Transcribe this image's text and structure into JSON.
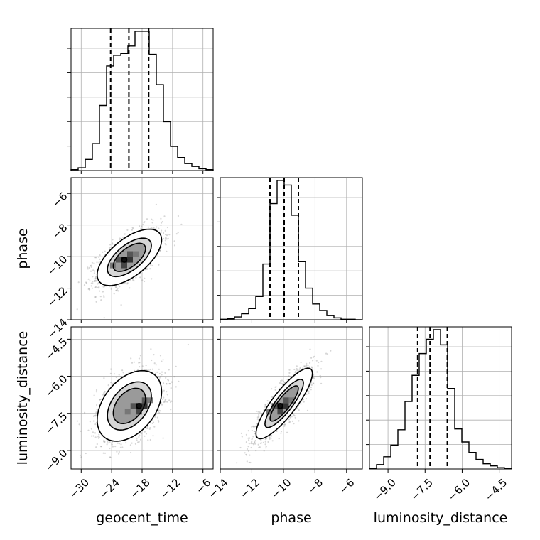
{
  "chart_data": {
    "type": "corner",
    "parameters": [
      "geocent_time",
      "phase",
      "luminosity_distance"
    ],
    "ranges": [
      [
        -32,
        -4
      ],
      [
        -14,
        -5
      ],
      [
        -9.75,
        -4.0
      ]
    ],
    "ticks": [
      [
        -30,
        -24,
        -18,
        -12,
        -6
      ],
      [
        -14,
        -12,
        -10,
        -8,
        -6
      ],
      [
        -9.0,
        -7.5,
        -6.0,
        -4.5
      ]
    ],
    "tick_labels": [
      [
        "−30",
        "−24",
        "−18",
        "−12",
        "−6"
      ],
      [
        "−14",
        "−12",
        "−10",
        "−8",
        "−6"
      ],
      [
        "−9.0",
        "−7.5",
        "−6.0",
        "−4.5"
      ]
    ],
    "y_tick_labels_phase": [
      "−6",
      "−8",
      "−10",
      "−12",
      "−14"
    ],
    "y_tick_labels_lum": [
      "−4.5",
      "−6.0",
      "−7.5",
      "−9.0"
    ],
    "grid": true,
    "histograms": [
      {
        "parameter": "geocent_time",
        "bin_edges": [
          -32,
          -30.6,
          -29.2,
          -27.8,
          -26.4,
          -25,
          -23.6,
          -22.2,
          -20.8,
          -19.4,
          -18,
          -16.6,
          -15.2,
          -13.8,
          -12.4,
          -11,
          -9.6,
          -8.2,
          -6.8,
          -5.4,
          -4
        ],
        "counts": [
          2,
          6,
          24,
          58,
          140,
          225,
          248,
          252,
          268,
          300,
          300,
          250,
          185,
          105,
          52,
          28,
          15,
          9,
          4,
          2
        ],
        "quantiles": [
          -24.2,
          -20.6,
          -16.7
        ]
      },
      {
        "parameter": "phase",
        "bin_edges": [
          -14,
          -13.55,
          -13.1,
          -12.65,
          -12.2,
          -11.75,
          -11.3,
          -10.85,
          -10.4,
          -9.95,
          -9.5,
          -9.05,
          -8.6,
          -8.15,
          -7.7,
          -7.25,
          -6.8,
          -6.35,
          -5.9,
          -5.45,
          -5
        ],
        "counts": [
          1,
          2,
          6,
          13,
          24,
          50,
          120,
          250,
          300,
          290,
          225,
          125,
          68,
          34,
          20,
          9,
          4,
          1,
          1,
          0
        ],
        "quantiles": [
          -10.85,
          -9.95,
          -9.05
        ]
      },
      {
        "parameter": "luminosity_distance",
        "bin_edges": [
          -9.75,
          -9.4625,
          -9.175,
          -8.8875,
          -8.6,
          -8.3125,
          -8.025,
          -7.7375,
          -7.45,
          -7.1625,
          -6.875,
          -6.5875,
          -6.3,
          -6.0125,
          -5.725,
          -5.4375,
          -5.15,
          -4.8625,
          -4.575,
          -4.2875,
          -4.0
        ],
        "counts": [
          2,
          10,
          28,
          55,
          90,
          155,
          215,
          265,
          298,
          320,
          285,
          185,
          92,
          62,
          38,
          22,
          12,
          7,
          3,
          2
        ],
        "quantiles": [
          -7.8,
          -7.3,
          -6.6
        ]
      }
    ],
    "joint": [
      {
        "x": "geocent_time",
        "y": "phase",
        "center": [
          -20.5,
          -10.05
        ],
        "sigma": [
          3.2,
          0.9
        ],
        "rho": 0.62,
        "peak": [
          -21.5,
          -10.2
        ]
      },
      {
        "x": "geocent_time",
        "y": "luminosity_distance",
        "center": [
          -20.5,
          -7.2
        ],
        "sigma": [
          3.2,
          0.72
        ],
        "rho": 0.4,
        "peak": [
          -18.6,
          -7.2
        ]
      },
      {
        "x": "phase",
        "y": "luminosity_distance",
        "center": [
          -9.95,
          -7.1
        ],
        "sigma": [
          0.9,
          0.72
        ],
        "rho": 0.85,
        "peak": [
          -10.2,
          -7.2
        ]
      }
    ]
  }
}
